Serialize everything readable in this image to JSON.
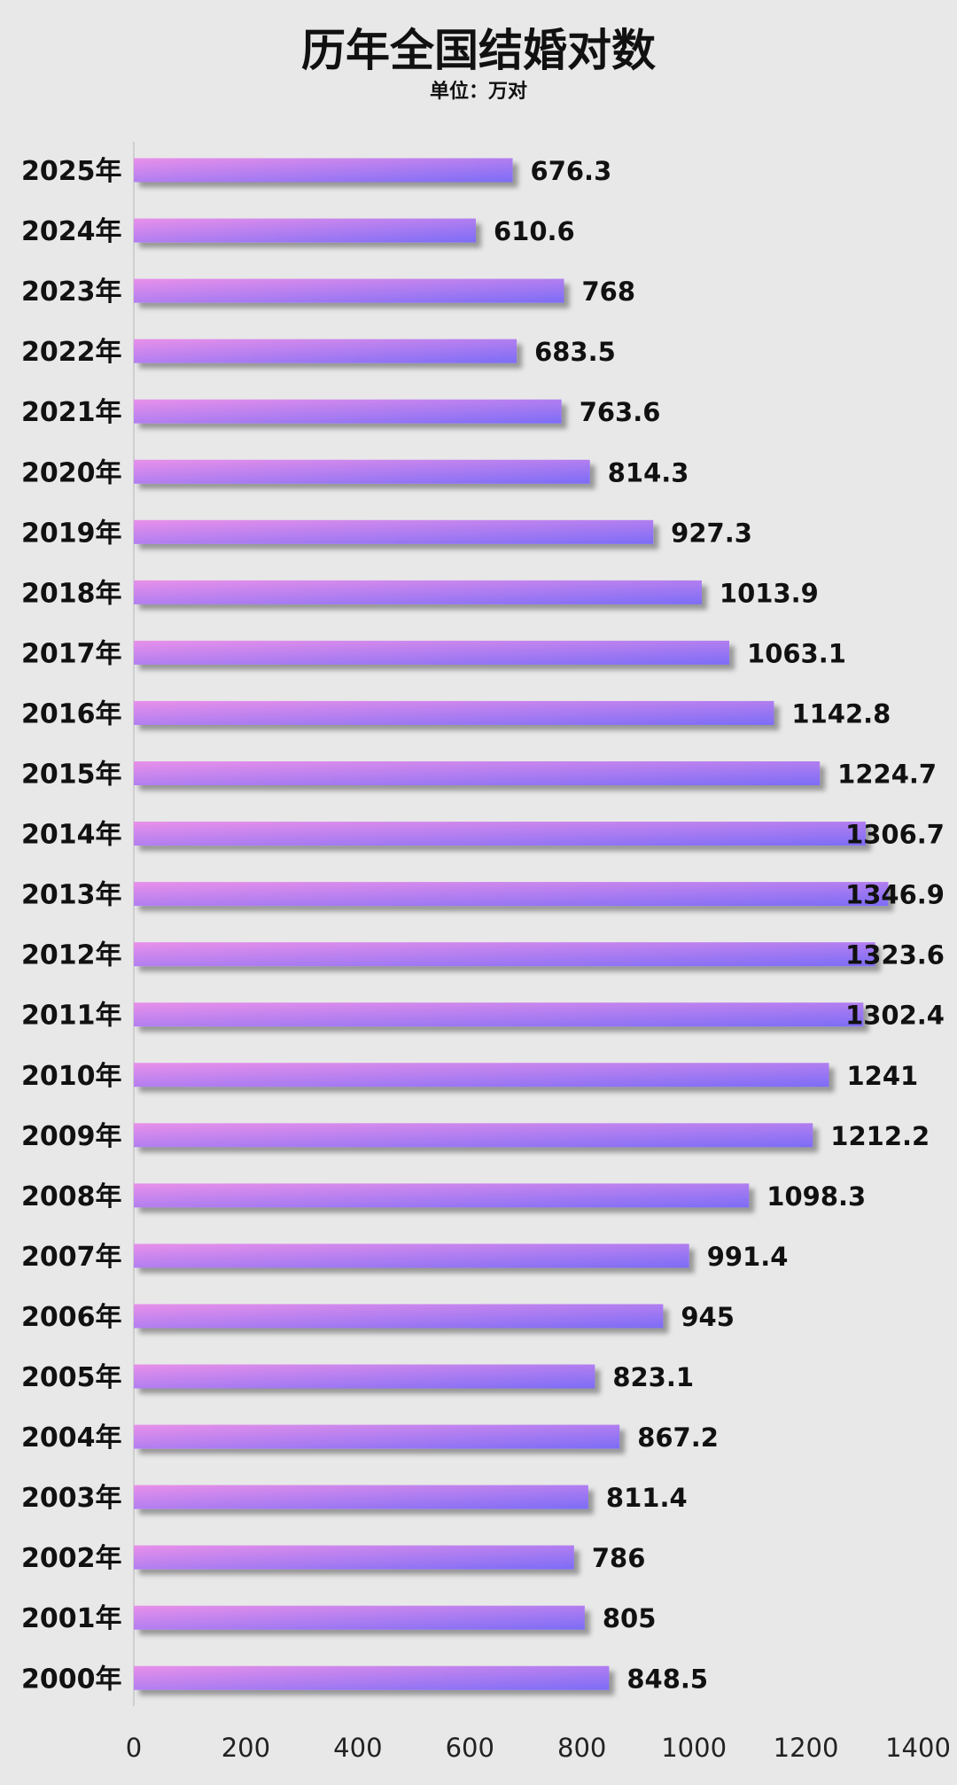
{
  "chart_data": {
    "type": "bar",
    "orientation": "horizontal",
    "title": "历年全国结婚对数",
    "subtitle": "单位：万对",
    "xlabel": "",
    "ylabel": "",
    "xlim": [
      0,
      1400
    ],
    "x_ticks": [
      "0",
      "200",
      "400",
      "600",
      "800",
      "1000",
      "1200",
      "1400"
    ],
    "grid": false,
    "legend": "none",
    "categories": [
      "2025年",
      "2024年",
      "2023年",
      "2022年",
      "2021年",
      "2020年",
      "2019年",
      "2018年",
      "2017年",
      "2016年",
      "2015年",
      "2014年",
      "2013年",
      "2012年",
      "2011年",
      "2010年",
      "2009年",
      "2008年",
      "2007年",
      "2006年",
      "2005年",
      "2004年",
      "2003年",
      "2002年",
      "2001年",
      "2000年"
    ],
    "values": [
      676.3,
      610.6,
      768,
      683.5,
      763.6,
      814.3,
      927.3,
      1013.9,
      1063.1,
      1142.8,
      1224.7,
      1306.7,
      1346.9,
      1323.6,
      1302.4,
      1241,
      1212.2,
      1098.3,
      991.4,
      945,
      823.1,
      867.2,
      811.4,
      786,
      805,
      848.5
    ],
    "value_labels": [
      "676.3",
      "610.6",
      "768",
      "683.5",
      "763.6",
      "814.3",
      "927.3",
      "1013.9",
      "1063.1",
      "1142.8",
      "1224.7",
      "1306.7",
      "1346.9",
      "1323.6",
      "1302.4",
      "1241",
      "1212.2",
      "1098.3",
      "991.4",
      "945",
      "823.1",
      "867.2",
      "811.4",
      "786",
      "805",
      "848.5"
    ],
    "colors": {
      "background": "#e8e8e8",
      "bar_gradient_start": "#e890ea",
      "bar_gradient_end": "#7c6cf6",
      "axis_line": "#cfcfcf",
      "text": "#111111"
    }
  }
}
